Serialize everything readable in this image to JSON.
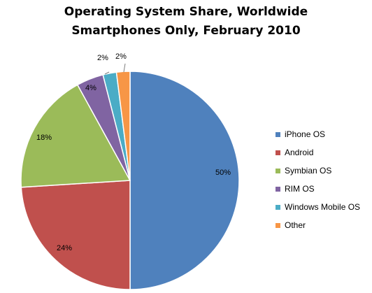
{
  "chart_data": {
    "type": "pie",
    "title": "Operating System Share, Worldwide",
    "subtitle": "Smartphones Only, February 2010",
    "categories": [
      "iPhone OS",
      "Android",
      "Symbian OS",
      "RIM OS",
      "Windows Mobile OS",
      "Other"
    ],
    "values": [
      50,
      24,
      18,
      4,
      2,
      2
    ],
    "data_labels": [
      "50%",
      "24%",
      "18%",
      "4%",
      "2%",
      "2%"
    ],
    "colors": [
      "#4F81BD",
      "#C0504D",
      "#9BBB59",
      "#8064A2",
      "#4BACC6",
      "#F79646"
    ],
    "legend_position": "right"
  }
}
